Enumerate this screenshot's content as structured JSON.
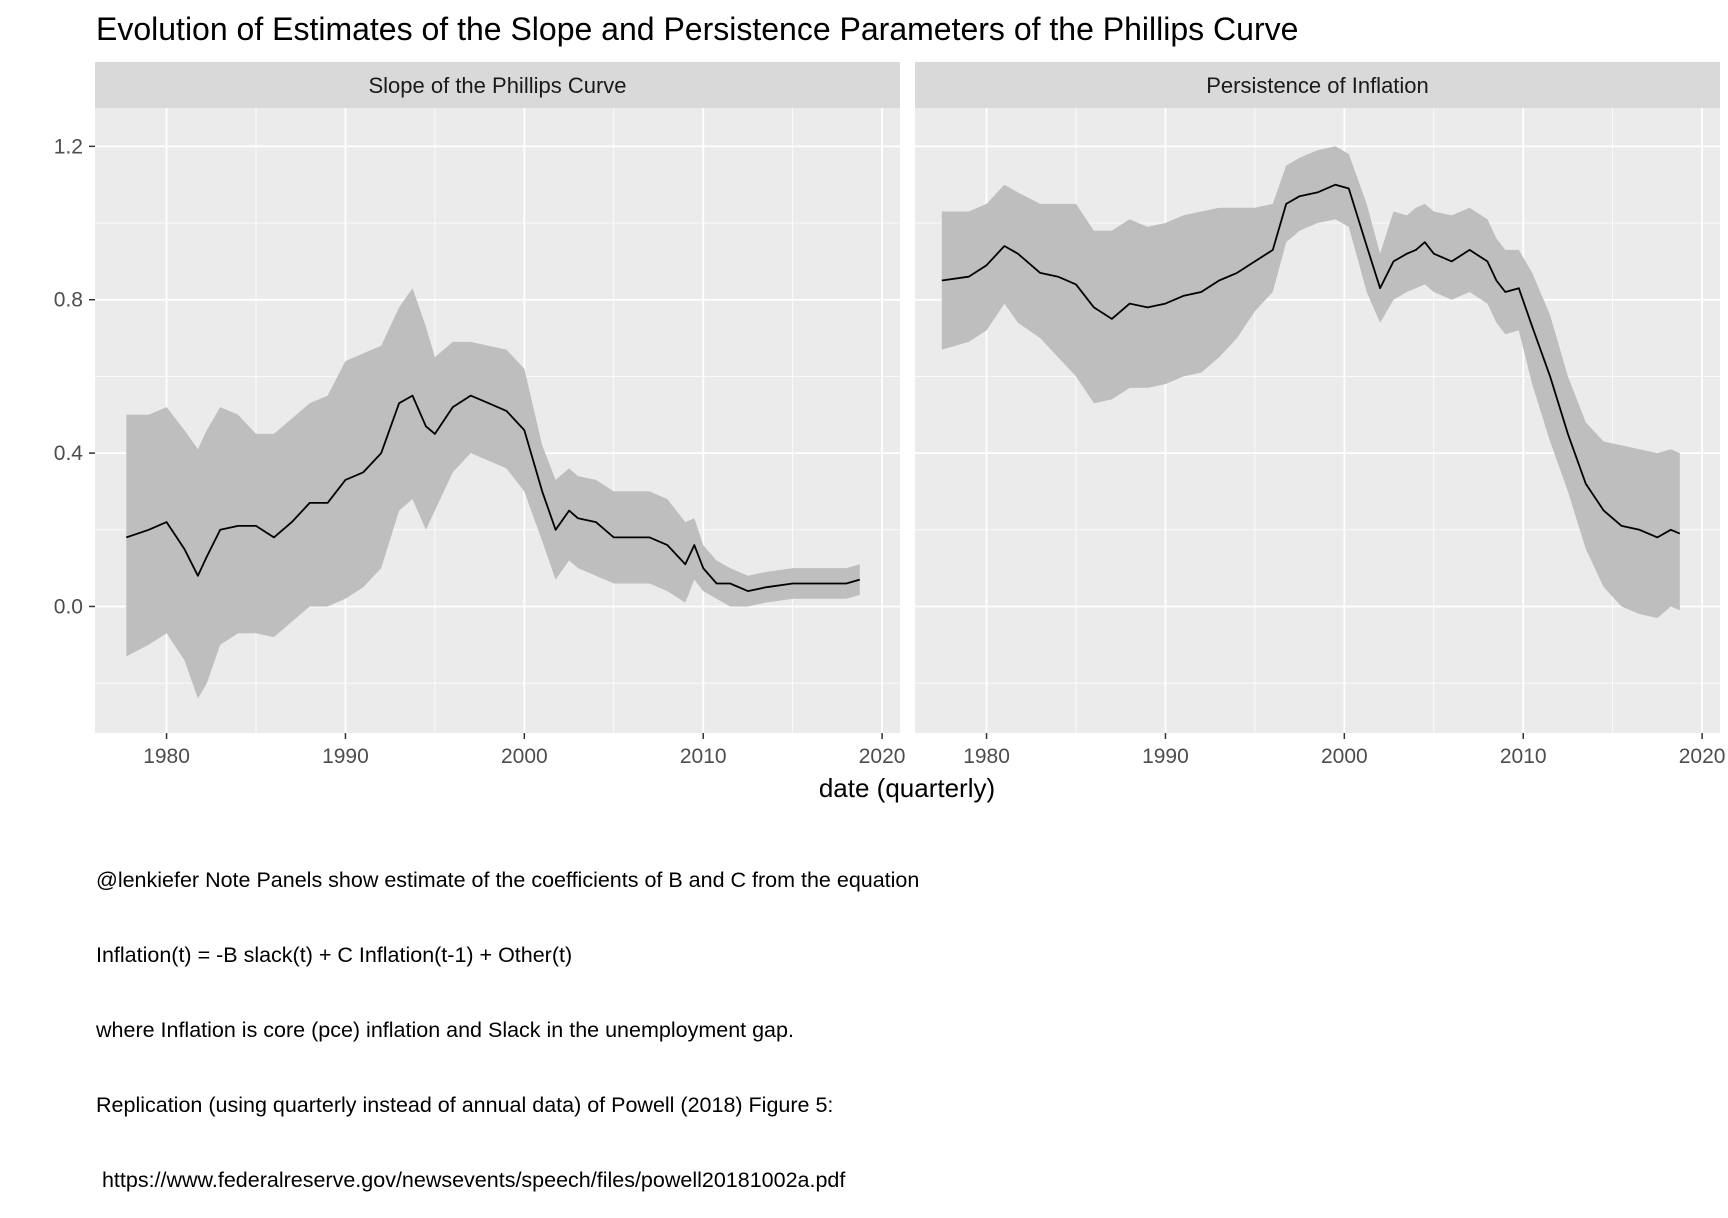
{
  "chart_data": {
    "type": "line",
    "title": "Evolution of Estimates of the Slope and Persistence Parameters of the Phillips Curve",
    "xlabel": "date (quarterly)",
    "ylabel": "",
    "xlim": [
      1976,
      2021
    ],
    "ylim": [
      -0.33,
      1.3
    ],
    "x_ticks": [
      "1980",
      "1990",
      "2000",
      "2010",
      "2020"
    ],
    "y_ticks": [
      "0.0",
      "0.4",
      "0.8",
      "1.2"
    ],
    "grid": true,
    "panels": [
      {
        "name": "Slope of the Phillips Curve",
        "x": [
          1977.75,
          1979,
          1980,
          1981,
          1981.75,
          1982.25,
          1983,
          1984,
          1985,
          1986,
          1987,
          1988,
          1989,
          1990,
          1991,
          1992,
          1993,
          1993.75,
          1994.5,
          1995,
          1996,
          1997,
          1998,
          1999,
          2000,
          2001,
          2001.75,
          2002.5,
          2003,
          2004,
          2005,
          2006,
          2007,
          2008,
          2009,
          2009.5,
          2010,
          2010.75,
          2011.5,
          2012.5,
          2013.5,
          2015,
          2016,
          2017,
          2018,
          2018.75
        ],
        "estimate": [
          0.18,
          0.2,
          0.22,
          0.15,
          0.08,
          0.13,
          0.2,
          0.21,
          0.21,
          0.18,
          0.22,
          0.27,
          0.27,
          0.33,
          0.35,
          0.4,
          0.53,
          0.55,
          0.47,
          0.45,
          0.52,
          0.55,
          0.53,
          0.51,
          0.46,
          0.3,
          0.2,
          0.25,
          0.23,
          0.22,
          0.18,
          0.18,
          0.18,
          0.16,
          0.11,
          0.16,
          0.1,
          0.06,
          0.06,
          0.04,
          0.05,
          0.06,
          0.06,
          0.06,
          0.06,
          0.07
        ],
        "upper": [
          0.5,
          0.5,
          0.52,
          0.46,
          0.41,
          0.46,
          0.52,
          0.5,
          0.45,
          0.45,
          0.49,
          0.53,
          0.55,
          0.64,
          0.66,
          0.68,
          0.78,
          0.83,
          0.73,
          0.65,
          0.69,
          0.69,
          0.68,
          0.67,
          0.62,
          0.42,
          0.33,
          0.36,
          0.34,
          0.33,
          0.3,
          0.3,
          0.3,
          0.28,
          0.22,
          0.23,
          0.16,
          0.12,
          0.1,
          0.08,
          0.09,
          0.1,
          0.1,
          0.1,
          0.1,
          0.11
        ],
        "lower": [
          -0.13,
          -0.1,
          -0.07,
          -0.14,
          -0.24,
          -0.2,
          -0.1,
          -0.07,
          -0.07,
          -0.08,
          -0.04,
          0.0,
          0.0,
          0.02,
          0.05,
          0.1,
          0.25,
          0.28,
          0.2,
          0.25,
          0.35,
          0.4,
          0.38,
          0.36,
          0.3,
          0.17,
          0.07,
          0.12,
          0.1,
          0.08,
          0.06,
          0.06,
          0.06,
          0.04,
          0.01,
          0.07,
          0.04,
          0.02,
          0.0,
          0.0,
          0.01,
          0.02,
          0.02,
          0.02,
          0.02,
          0.03
        ]
      },
      {
        "name": "Persistence of Inflation",
        "x": [
          1977.5,
          1979,
          1980,
          1981,
          1981.75,
          1983,
          1984,
          1985,
          1986,
          1987,
          1988,
          1989,
          1990,
          1991,
          1992,
          1993,
          1994,
          1995,
          1996,
          1996.75,
          1997.5,
          1998.5,
          1999.5,
          2000.25,
          2001.25,
          2002,
          2002.75,
          2003.5,
          2004,
          2004.5,
          2005,
          2006,
          2007,
          2008,
          2008.5,
          2009,
          2009.75,
          2010.5,
          2011.5,
          2012.5,
          2013.5,
          2014.5,
          2015.5,
          2016.5,
          2017.5,
          2018.25,
          2018.75
        ],
        "estimate": [
          0.85,
          0.86,
          0.89,
          0.94,
          0.92,
          0.87,
          0.86,
          0.84,
          0.78,
          0.75,
          0.79,
          0.78,
          0.79,
          0.81,
          0.82,
          0.85,
          0.87,
          0.9,
          0.93,
          1.05,
          1.07,
          1.08,
          1.1,
          1.09,
          0.94,
          0.83,
          0.9,
          0.92,
          0.93,
          0.95,
          0.92,
          0.9,
          0.93,
          0.9,
          0.85,
          0.82,
          0.83,
          0.73,
          0.6,
          0.45,
          0.32,
          0.25,
          0.21,
          0.2,
          0.18,
          0.2,
          0.19
        ],
        "upper": [
          1.03,
          1.03,
          1.05,
          1.1,
          1.08,
          1.05,
          1.05,
          1.05,
          0.98,
          0.98,
          1.01,
          0.99,
          1.0,
          1.02,
          1.03,
          1.04,
          1.04,
          1.04,
          1.05,
          1.15,
          1.17,
          1.19,
          1.2,
          1.18,
          1.05,
          0.92,
          1.03,
          1.02,
          1.04,
          1.05,
          1.03,
          1.02,
          1.04,
          1.01,
          0.96,
          0.93,
          0.93,
          0.87,
          0.76,
          0.6,
          0.48,
          0.43,
          0.42,
          0.41,
          0.4,
          0.41,
          0.4
        ],
        "lower": [
          0.67,
          0.69,
          0.72,
          0.79,
          0.74,
          0.7,
          0.65,
          0.6,
          0.53,
          0.54,
          0.57,
          0.57,
          0.58,
          0.6,
          0.61,
          0.65,
          0.7,
          0.77,
          0.82,
          0.95,
          0.98,
          1.0,
          1.01,
          0.99,
          0.82,
          0.74,
          0.8,
          0.82,
          0.83,
          0.84,
          0.82,
          0.8,
          0.82,
          0.79,
          0.74,
          0.71,
          0.72,
          0.58,
          0.43,
          0.3,
          0.15,
          0.05,
          0.0,
          -0.02,
          -0.03,
          0.0,
          -0.01
        ]
      }
    ]
  },
  "caption_lines": [
    "@lenkiefer Note Panels show estimate of the coefficients of B and C from the equation",
    "Inflation(t) = -B slack(t) + C Inflation(t-1) + Other(t)",
    "where Inflation is core (pce) inflation and Slack in the unemployment gap.",
    "Replication (using quarterly instead of annual data) of Powell (2018) Figure 5:",
    " https://www.federalreserve.gov/newsevents/speech/files/powell20181002a.pdf"
  ],
  "colors": {
    "panel_bg": "#ebebeb",
    "strip_bg": "#d9d9d9",
    "grid_major": "#ffffff",
    "ribbon": "#bebebe",
    "line": "#000000"
  }
}
